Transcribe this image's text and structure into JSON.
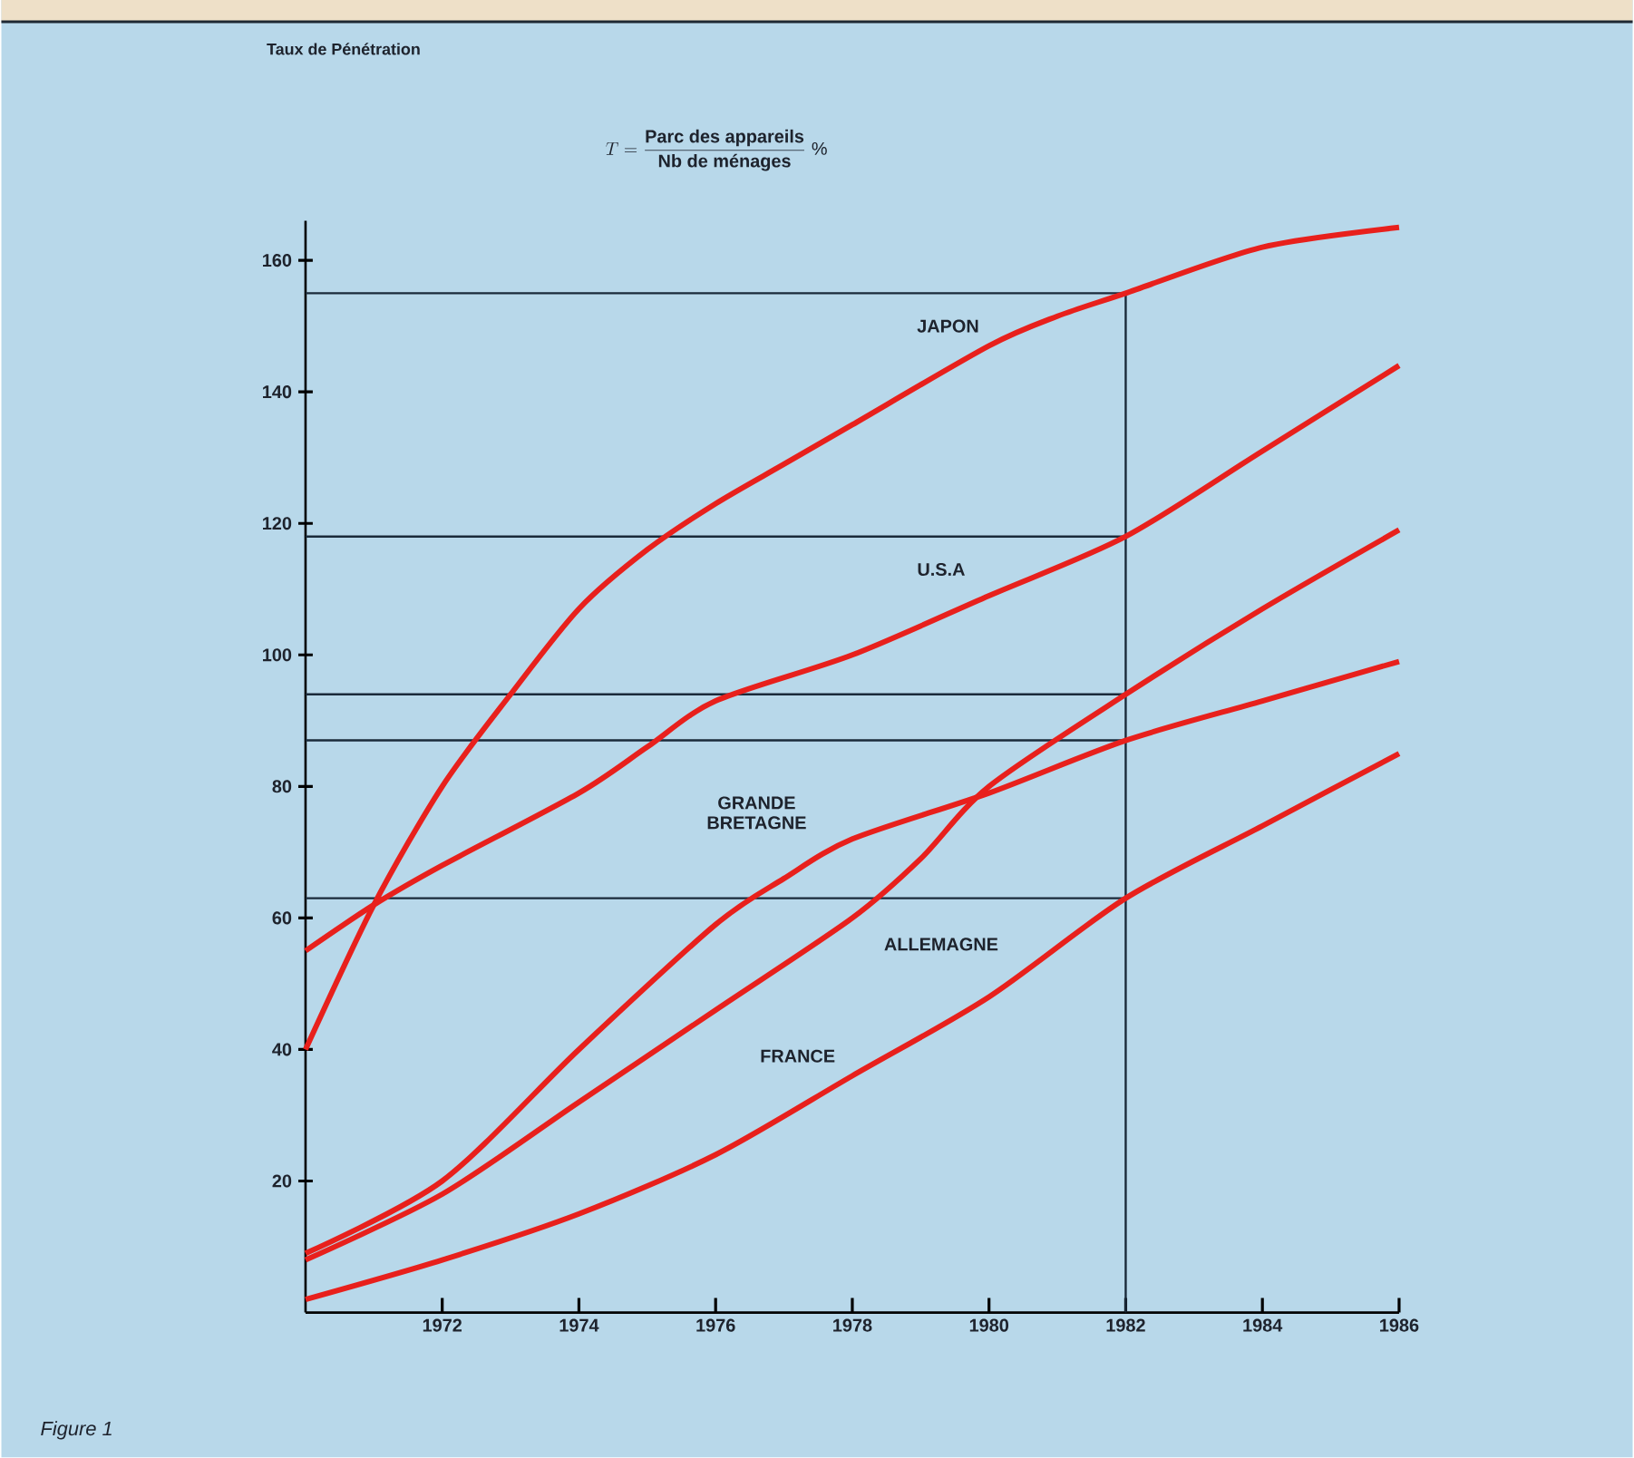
{
  "chart_data": {
    "type": "line",
    "annotations": [
      "Taux de Pénétration",
      "T = \\frac{\\mbox{Parc des appareils}}{\\mbox{Nb de ménages}}\\;\\%",
      "Figure 1"
    ],
    "xlim": [
      1970,
      1986
    ],
    "ylim": [
      0,
      166
    ],
    "xticks": [
      1972,
      1974,
      1976,
      1978,
      1980,
      1982,
      1984,
      1986
    ],
    "yticks": [
      20,
      40,
      60,
      80,
      100,
      120,
      140,
      160
    ],
    "ref_lines": [
      {
        "axis": "y",
        "value": 155,
        "color": "#1a2a3a"
      },
      {
        "axis": "y",
        "value": 118,
        "color": "#1a2a3a"
      },
      {
        "axis": "y",
        "value": 94,
        "color": "#1a2a3a"
      },
      {
        "axis": "y",
        "value": 87,
        "color": "#1a2a3a"
      },
      {
        "axis": "y",
        "value": 63,
        "color": "#1a2a3a"
      },
      {
        "axis": "x",
        "value": 1982,
        "color": "#1a2a3a"
      }
    ],
    "series": [
      {
        "name": "JAPON",
        "color": "#e8201c",
        "x": [
          1970,
          1971,
          1972,
          1973,
          1974,
          1975,
          1976,
          1977,
          1978,
          1980,
          1981,
          1982,
          1984,
          1986
        ],
        "values": [
          40,
          62,
          80,
          94,
          107,
          116,
          123,
          129,
          135,
          147,
          151.5,
          155,
          162,
          165
        ]
      },
      {
        "name": "U.S.A",
        "color": "#e8201c",
        "x": [
          1970,
          1971,
          1972,
          1974,
          1975,
          1976,
          1978,
          1980,
          1982,
          1984,
          1986
        ],
        "values": [
          55,
          62,
          68,
          79,
          86,
          93,
          100,
          109,
          118,
          131,
          144
        ]
      },
      {
        "name": "GRANDE BRETAGNE",
        "color": "#e8201c",
        "x": [
          1970,
          1972,
          1974,
          1976,
          1977,
          1978,
          1980,
          1982,
          1984,
          1986
        ],
        "values": [
          9,
          20,
          40,
          59,
          66,
          72,
          79,
          87,
          93,
          99
        ]
      },
      {
        "name": "ALLEMAGNE",
        "color": "#e8201c",
        "x": [
          1970,
          1972,
          1974,
          1976,
          1978,
          1979,
          1980,
          1982,
          1984,
          1986
        ],
        "values": [
          8,
          18,
          32,
          46,
          60,
          69,
          80,
          94,
          107,
          119
        ]
      },
      {
        "name": "FRANCE",
        "color": "#e8201c",
        "x": [
          1970,
          1972,
          1974,
          1976,
          1978,
          1980,
          1982,
          1984,
          1986
        ],
        "values": [
          2,
          8,
          15,
          24,
          36,
          48,
          63,
          74,
          85
        ]
      }
    ]
  }
}
